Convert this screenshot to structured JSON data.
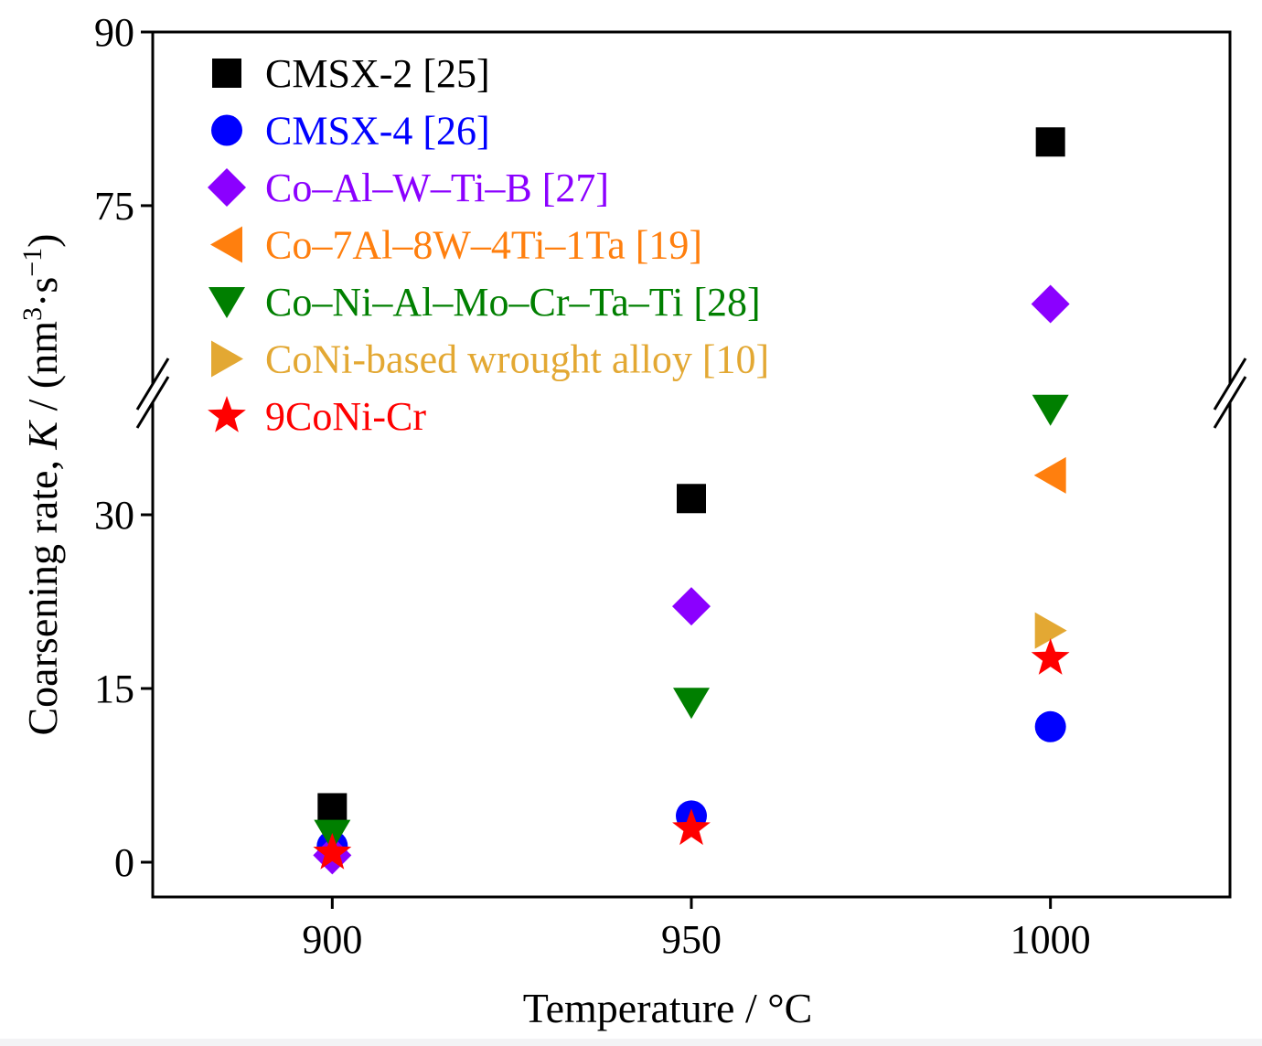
{
  "chart_data": {
    "type": "scatter",
    "xlabel": "Temperature / °C",
    "ylabel": [
      {
        "t": "Coarsening rate, "
      },
      {
        "t": "K",
        "italic": true
      },
      {
        "t": " / (nm"
      },
      {
        "t": "3",
        "sup": true
      },
      {
        "t": "·s"
      },
      {
        "t": "−1",
        "sup": true
      },
      {
        "t": ")"
      }
    ],
    "xlim": [
      875,
      1025
    ],
    "xticks": [
      900,
      950,
      1000
    ],
    "y_axis_break": true,
    "ylim_segments": [
      [
        -3,
        40.5
      ],
      [
        58.8,
        90
      ]
    ],
    "yticks": [
      0,
      15,
      30,
      75,
      90
    ],
    "grid": false,
    "legend": "top-left",
    "series": [
      {
        "name": "CMSX-2 [25]",
        "marker": "square",
        "color": "#000000",
        "points": [
          [
            900,
            4.7
          ],
          [
            950,
            31.4
          ],
          [
            1000,
            80.5
          ]
        ]
      },
      {
        "name": "CMSX-4 [26]",
        "marker": "circle",
        "color": "#0000ff",
        "points": [
          [
            900,
            1.4
          ],
          [
            950,
            4.0
          ],
          [
            1000,
            11.7
          ]
        ]
      },
      {
        "name": "Co–Al–W–Ti–B [27]",
        "marker": "diamond",
        "color": "#8b00ff",
        "points": [
          [
            900,
            0.6
          ],
          [
            950,
            22.1
          ],
          [
            1000,
            66.5
          ]
        ]
      },
      {
        "name": "Co–7Al–8W–4Ti–1Ta [19]",
        "marker": "triangle-left",
        "color": "#ff7f0e",
        "points": [
          [
            1000,
            33.4
          ]
        ]
      },
      {
        "name": "Co–Ni–Al–Mo–Cr–Ta–Ti [28]",
        "marker": "triangle-down",
        "color": "#007f00",
        "points": [
          [
            900,
            2.4
          ],
          [
            950,
            13.8
          ],
          [
            1000,
            39.1
          ]
        ]
      },
      {
        "name": "CoNi-based wrought alloy [10]",
        "marker": "triangle-right",
        "color": "#e3a833",
        "points": [
          [
            1000,
            20.0
          ]
        ]
      },
      {
        "name": "9CoNi-Cr",
        "marker": "star",
        "color": "#ff0000",
        "points": [
          [
            900,
            0.8
          ],
          [
            950,
            2.9
          ],
          [
            1000,
            17.6
          ]
        ]
      }
    ]
  }
}
